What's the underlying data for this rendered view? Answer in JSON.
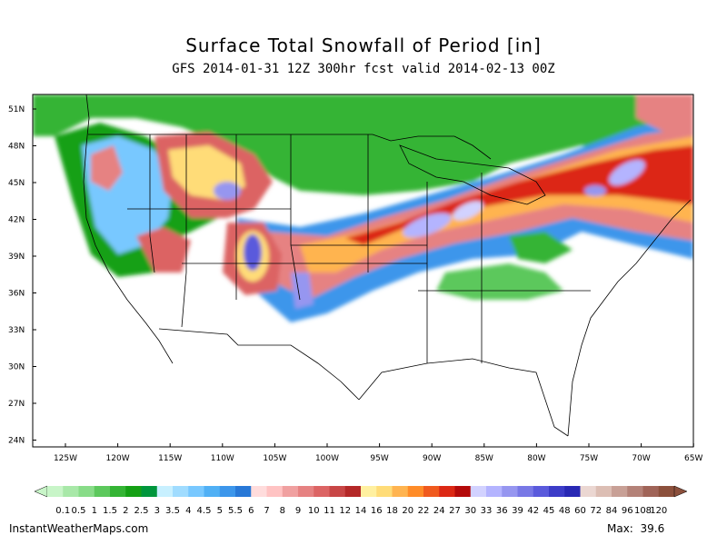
{
  "title": "Surface Total Snowfall of Period [in]",
  "subtitle": "GFS 2014-01-31 12Z 300hr fcst valid 2014-02-13 00Z",
  "lat_labels": [
    "51N",
    "48N",
    "45N",
    "42N",
    "39N",
    "36N",
    "33N",
    "30N",
    "27N",
    "24N"
  ],
  "lon_labels": [
    "125W",
    "120W",
    "115W",
    "110W",
    "105W",
    "100W",
    "95W",
    "90W",
    "85W",
    "80W",
    "75W",
    "70W",
    "65W"
  ],
  "legend": {
    "labels": [
      "0.1",
      "0.5",
      "1",
      "1.5",
      "2",
      "2.5",
      "3",
      "3.5",
      "4",
      "4.5",
      "5",
      "5.5",
      "6",
      "7",
      "8",
      "9",
      "10",
      "11",
      "12",
      "14",
      "16",
      "18",
      "20",
      "22",
      "24",
      "27",
      "30",
      "33",
      "36",
      "39",
      "42",
      "45",
      "48",
      "60",
      "72",
      "84",
      "96",
      "108",
      "120"
    ],
    "colors": [
      "#c8f5c8",
      "#a8e8a8",
      "#88dc88",
      "#5cc85c",
      "#34b434",
      "#14a014",
      "#00963c",
      "#c8f0ff",
      "#a0dcff",
      "#78c8ff",
      "#50b0f5",
      "#3c96eb",
      "#2878d7",
      "#ffdcdc",
      "#ffc3c3",
      "#f0a0a0",
      "#e68282",
      "#dc6464",
      "#c84646",
      "#b42828",
      "#fff0a0",
      "#ffdc78",
      "#ffb450",
      "#ff8c28",
      "#f05a1e",
      "#dc2814",
      "#b40a0a",
      "#d2d2ff",
      "#b4b4ff",
      "#9696f0",
      "#7878e6",
      "#5a5adc",
      "#3c3cc8",
      "#2828b4",
      "#ebd7d2",
      "#dcbeb4",
      "#c8a096",
      "#b48278",
      "#a06458",
      "#8c503c"
    ]
  },
  "footer": {
    "source": "InstantWeatherMaps.com",
    "max_label": "Max:",
    "max_value": "39.6"
  },
  "colors": {
    "frame": "#000000",
    "map_bg": "#ffffff"
  }
}
